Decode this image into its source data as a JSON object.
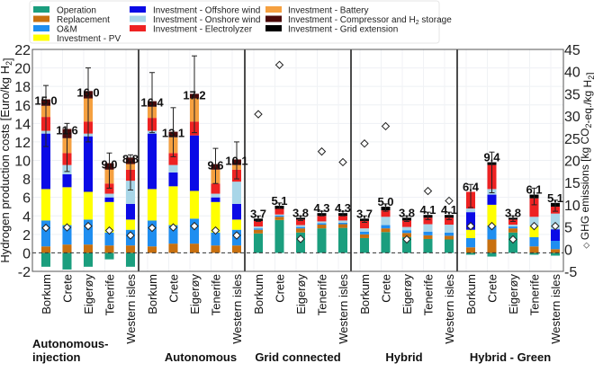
{
  "chart_data": {
    "type": "bar",
    "stacked": true,
    "ylabel": "Hydrogen production costs [Euro/kg H2]",
    "y2label": "GHG emissions [kg CO2-eq./kg H2]",
    "y2marker_legend": "◇",
    "ylim": [
      -2,
      22
    ],
    "y2lim": [
      -5,
      45
    ],
    "yticks": [
      -2,
      0,
      2,
      4,
      6,
      8,
      10,
      12,
      14,
      16,
      18,
      20,
      22
    ],
    "y2ticks": [
      -5,
      0,
      5,
      10,
      15,
      20,
      25,
      30,
      35,
      40,
      45
    ],
    "grid": true,
    "legend_position": "top",
    "components": [
      {
        "name": "Operation",
        "color": "#1b9e7e"
      },
      {
        "name": "Replacement",
        "color": "#c8700f"
      },
      {
        "name": "O&M",
        "color": "#1f8ef0"
      },
      {
        "name": "Investment - PV",
        "color": "#ffff00"
      },
      {
        "name": "Investment - Offshore wind",
        "color": "#0a0ae6"
      },
      {
        "name": "Investment - Onshore wind",
        "color": "#a9d6e8"
      },
      {
        "name": "Investment - Electrolyzer",
        "color": "#ee2222"
      },
      {
        "name": "Investment - Battery",
        "color": "#f5a040"
      },
      {
        "name": "Investment - Compressor and H2 storage",
        "color": "#4a0808"
      },
      {
        "name": "Investment - Grid extension",
        "color": "#000000"
      }
    ],
    "categories": [
      "Borkum",
      "Crete",
      "Eigerøy",
      "Tenerife",
      "Western isles"
    ],
    "groups": [
      {
        "name": "Autonomous-\ninjection",
        "bars": [
          {
            "label": "15.0",
            "values": [
              -1.5,
              0.7,
              2.8,
              3.4,
              6.0,
              0.3,
              1.5,
              1.2,
              0.7,
              0
            ],
            "error": [
              11.5,
              18.1
            ],
            "ghg": 4.8
          },
          {
            "label": "11.6",
            "values": [
              -1.8,
              0.9,
              2.1,
              4.1,
              1.4,
              1.0,
              1.3,
              1.6,
              1.0,
              0
            ],
            "error": [
              8.8,
              14.0
            ],
            "ghg": 4.9
          },
          {
            "label": "16.0",
            "values": [
              -1.5,
              0.9,
              2.7,
              3.0,
              6.0,
              0.3,
              1.3,
              2.5,
              0.8,
              0
            ],
            "error": [
              12.0,
              20.0
            ],
            "ghg": 5.2
          },
          {
            "label": "9.0",
            "values": [
              -0.7,
              0.8,
              1.4,
              3.3,
              0.5,
              0.4,
              1.1,
              1.5,
              0.7,
              0
            ],
            "error": [
              7.0,
              10.8
            ],
            "ghg": 4.2
          },
          {
            "label": "8.8",
            "values": [
              -1.5,
              0.8,
              1.7,
              1.1,
              1.7,
              2.5,
              1.2,
              0.6,
              0.7,
              0
            ],
            "error": [
              6.8,
              10.6
            ],
            "ghg": 3.1
          }
        ]
      },
      {
        "name": "Autonomous",
        "bars": [
          {
            "label": "16.4",
            "values": [
              0,
              0.7,
              2.8,
              3.4,
              6.0,
              0.3,
              1.4,
              1.2,
              0.6,
              0
            ],
            "error": [
              13.0,
              19.5
            ],
            "ghg": 4.8
          },
          {
            "label": "13.1",
            "values": [
              0,
              1.0,
              2.0,
              4.2,
              1.5,
              0.8,
              1.3,
              1.7,
              0.6,
              0
            ],
            "error": [
              10.4,
              15.7
            ],
            "ghg": 4.9
          },
          {
            "label": "17.2",
            "values": [
              0,
              1.0,
              2.7,
              3.0,
              6.0,
              0,
              1.5,
              2.5,
              0.5,
              0
            ],
            "error": [
              13.0,
              21.3
            ],
            "ghg": 5.2
          },
          {
            "label": "9.6",
            "values": [
              0,
              0.8,
              1.4,
              3.3,
              0.5,
              0.4,
              1.1,
              1.5,
              0.6,
              0
            ],
            "error": [
              7.5,
              11.3
            ],
            "ghg": 4.2
          },
          {
            "label": "10.1",
            "values": [
              0,
              0.8,
              1.7,
              1.1,
              1.7,
              2.4,
              1.3,
              0.5,
              0.6,
              0
            ],
            "error": [
              8.0,
              12.0
            ],
            "ghg": 3.1
          }
        ]
      },
      {
        "name": "Grid connected",
        "bars": [
          {
            "label": "3.7",
            "values": [
              2.1,
              0.4,
              0.15,
              0,
              0,
              0.2,
              0.6,
              0,
              0,
              0.25
            ],
            "error": [
              3.4,
              4.0
            ],
            "ghg": 30.4
          },
          {
            "label": "5.1",
            "values": [
              3.55,
              0.35,
              0.15,
              0,
              0,
              0.1,
              0.6,
              0,
              0,
              0.35
            ],
            "error": [
              4.8,
              5.4
            ],
            "ghg": 41.5
          },
          {
            "label": "3.8",
            "values": [
              2.2,
              0.45,
              0.15,
              0,
              0,
              0.2,
              0.6,
              0,
              0,
              0.2
            ],
            "error": [
              3.5,
              4.0
            ],
            "ghg": 2.3
          },
          {
            "label": "4.3",
            "values": [
              2.65,
              0.4,
              0.15,
              0,
              0,
              0.2,
              0.6,
              0,
              0,
              0.3
            ],
            "error": [
              4.0,
              4.5
            ],
            "ghg": 22.0
          },
          {
            "label": "4.3",
            "values": [
              2.7,
              0.4,
              0.15,
              0,
              0,
              0.25,
              0.5,
              0,
              0,
              0.3
            ],
            "error": [
              4.0,
              4.5
            ],
            "ghg": 19.6
          }
        ]
      },
      {
        "name": "Hybrid",
        "bars": [
          {
            "label": "3.7",
            "values": [
              1.6,
              0.4,
              0.3,
              0,
              0,
              0.35,
              0.8,
              0,
              0,
              0.25
            ],
            "error": [
              3.3,
              4.0
            ],
            "ghg": 23.8
          },
          {
            "label": "5.0",
            "values": [
              2.25,
              0.4,
              0.35,
              0,
              0,
              0.9,
              0.7,
              0,
              0,
              0.4
            ],
            "error": [
              4.5,
              5.3
            ],
            "ghg": 27.7
          },
          {
            "label": "3.8",
            "values": [
              1.7,
              0.45,
              0.3,
              0,
              0,
              0.35,
              0.7,
              0,
              0,
              0.3
            ],
            "error": [
              3.4,
              4.0
            ],
            "ghg": 2.2
          },
          {
            "label": "4.1",
            "values": [
              1.5,
              0.4,
              0.4,
              0,
              0,
              0.8,
              0.7,
              0,
              0,
              0.3
            ],
            "error": [
              3.6,
              4.4
            ],
            "ghg": 13.1
          },
          {
            "label": "4.1",
            "values": [
              1.45,
              0.4,
              0.35,
              0,
              0,
              0.85,
              0.75,
              0,
              0,
              0.3
            ],
            "error": [
              3.6,
              4.4
            ],
            "ghg": 10.9
          }
        ]
      },
      {
        "name": "Hybrid - Green",
        "bars": [
          {
            "label": "6.4",
            "values": [
              -0.2,
              0.6,
              1.0,
              0.9,
              1.9,
              0.4,
              1.8,
              0,
              0,
              0
            ],
            "error": [
              4.9,
              7.4
            ],
            "ghg": 5.2
          },
          {
            "label": "9.4",
            "values": [
              -0.4,
              1.45,
              1.5,
              2.25,
              1.1,
              0.6,
              2.6,
              0,
              0,
              0.3
            ],
            "error": [
              6.5,
              10.9
            ],
            "ghg": 5.2
          },
          {
            "label": "3.8",
            "values": [
              2.2,
              0.45,
              0.2,
              0,
              0,
              0.2,
              0.55,
              0,
              0,
              0.2
            ],
            "error": [
              3.4,
              4.0
            ],
            "ghg": 2.2
          },
          {
            "label": "6.1",
            "values": [
              -0.2,
              0.7,
              1.0,
              1.2,
              0,
              1.0,
              2.0,
              0,
              0,
              0.4
            ],
            "error": [
              5.2,
              7.0
            ],
            "ghg": 5.2
          },
          {
            "label": "5.1",
            "values": [
              -0.3,
              0.4,
              0.9,
              0,
              1.25,
              1.7,
              0.75,
              0,
              0,
              0.4
            ],
            "error": [
              4.5,
              5.7
            ],
            "ghg": 5.2
          }
        ]
      }
    ]
  }
}
